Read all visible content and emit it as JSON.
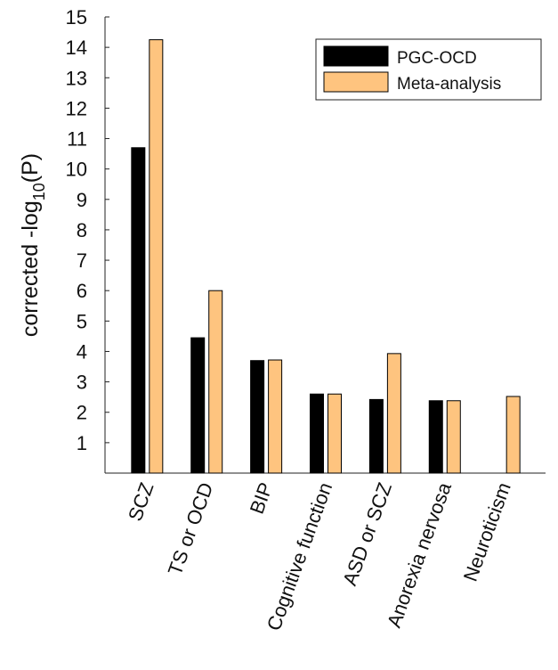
{
  "chart_data": {
    "type": "bar",
    "ylabel": [
      "corrected -log",
      "10",
      "(P)"
    ],
    "categories": [
      "SCZ",
      "TS or OCD",
      "BIP",
      "Cognitive function",
      "ASD or SCZ",
      "Anorexia nervosa",
      "Neuroticism"
    ],
    "series": [
      {
        "name": "PGC-OCD",
        "color": "#000000",
        "values": [
          10.7,
          4.45,
          3.7,
          2.6,
          2.42,
          2.38,
          null
        ]
      },
      {
        "name": "Meta-analysis",
        "color": "#fec47f",
        "values": [
          14.25,
          6.0,
          3.72,
          2.6,
          3.93,
          2.38,
          2.52
        ]
      }
    ],
    "ylim": [
      0,
      15
    ],
    "yticks": [
      1,
      2,
      3,
      4,
      5,
      6,
      7,
      8,
      9,
      10,
      11,
      12,
      13,
      14,
      15
    ],
    "legend": "upper right"
  }
}
